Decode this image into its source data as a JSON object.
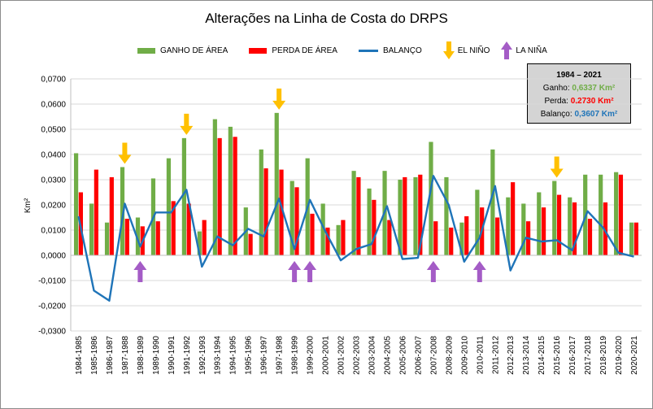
{
  "title": "Alterações na Linha de Costa do DRPS",
  "colors": {
    "gain": "#70ad47",
    "loss": "#ff0000",
    "balance": "#1f74b8",
    "el_nino": "#ffc000",
    "la_nina": "#a45cc6",
    "grid": "#d9d9d9",
    "gain_text": "#70ad47",
    "loss_text": "#ff0000",
    "balance_text": "#1f74b8"
  },
  "legend": {
    "gain": "GANHO DE ÁREA",
    "loss": "PERDA DE ÁREA",
    "balance": "BALANÇO",
    "el_nino": "EL NIÑO",
    "la_nina": "LA NIÑA"
  },
  "summary": {
    "period": "1984 – 2021",
    "gain_label": "Ganho:",
    "gain_value": "0,6337 Km²",
    "loss_label": "Perda:",
    "loss_value": "0,2730 Km²",
    "balance_label": "Balanço:",
    "balance_value": "0,3607 Km²"
  },
  "chart_data": {
    "type": "bar",
    "title": "Alterações na Linha de Costa do DRPS",
    "xlabel": "",
    "ylabel": "Km²",
    "ylim": [
      -0.03,
      0.07
    ],
    "yticks": [
      "-0,0300",
      "-0,0200",
      "-0,0100",
      "0,0000",
      "0,0100",
      "0,0200",
      "0,0300",
      "0,0400",
      "0,0500",
      "0,0600",
      "0,0700"
    ],
    "grid": true,
    "legend_position": "top",
    "categories": [
      "1984-1985",
      "1985-1986",
      "1986-1987",
      "1987-1988",
      "1988-1989",
      "1989-1990",
      "1990-1991",
      "1991-1992",
      "1992-1993",
      "1993-1994",
      "1994-1995",
      "1995-1996",
      "1996-1997",
      "1997-1998",
      "1998-1999",
      "1999-2000",
      "2000-2001",
      "2001-2002",
      "2002-2003",
      "2003-2004",
      "2004-2005",
      "2005-2006",
      "2006-2007",
      "2007-2008",
      "2008-2009",
      "2009-2010",
      "2010-2011",
      "2011-2012",
      "2012-2013",
      "2013-2014",
      "2014-2015",
      "2015-2016",
      "2016-2017",
      "2017-2018",
      "2018-2019",
      "2019-2020",
      "2020-2021"
    ],
    "series": [
      {
        "name": "GANHO DE ÁREA",
        "type": "bar",
        "values": [
          0.0405,
          0.0205,
          0.013,
          0.035,
          0.015,
          0.0305,
          0.0385,
          0.0465,
          0.0095,
          0.054,
          0.051,
          0.019,
          0.042,
          0.0565,
          0.0295,
          0.0385,
          0.0205,
          0.012,
          0.0335,
          0.0265,
          0.0335,
          0.03,
          0.031,
          0.045,
          0.031,
          0.013,
          0.026,
          0.042,
          0.023,
          0.0205,
          0.025,
          0.0295,
          0.023,
          0.032,
          0.032,
          0.033,
          0.013
        ]
      },
      {
        "name": "PERDA DE ÁREA",
        "type": "bar",
        "values": [
          0.025,
          0.034,
          0.031,
          0.0145,
          0.0115,
          0.0135,
          0.0215,
          0.0205,
          0.014,
          0.0465,
          0.047,
          0.0085,
          0.0345,
          0.034,
          0.027,
          0.0165,
          0.011,
          0.014,
          0.031,
          0.022,
          0.014,
          0.031,
          0.032,
          0.0135,
          0.011,
          0.0155,
          0.019,
          0.015,
          0.029,
          0.0135,
          0.019,
          0.024,
          0.021,
          0.0145,
          0.021,
          0.032,
          0.013
        ]
      },
      {
        "name": "BALANÇO",
        "type": "line",
        "values": [
          0.0155,
          -0.014,
          -0.018,
          0.0205,
          0.0035,
          0.017,
          0.017,
          0.026,
          -0.0045,
          0.0075,
          0.004,
          0.0105,
          0.0075,
          0.0225,
          0.0025,
          0.022,
          0.0095,
          -0.002,
          0.0025,
          0.0045,
          0.0195,
          -0.0015,
          -0.001,
          0.0315,
          0.02,
          -0.0025,
          0.007,
          0.0275,
          -0.006,
          0.007,
          0.0055,
          0.006,
          0.002,
          0.0175,
          0.011,
          0.001,
          -0.0005
        ]
      }
    ],
    "el_nino_years": [
      "1987-1988",
      "1991-1992",
      "1997-1998",
      "2015-2016"
    ],
    "la_nina_years": [
      "1988-1989",
      "1998-1999",
      "1999-2000",
      "2007-2008",
      "2010-2011"
    ]
  }
}
